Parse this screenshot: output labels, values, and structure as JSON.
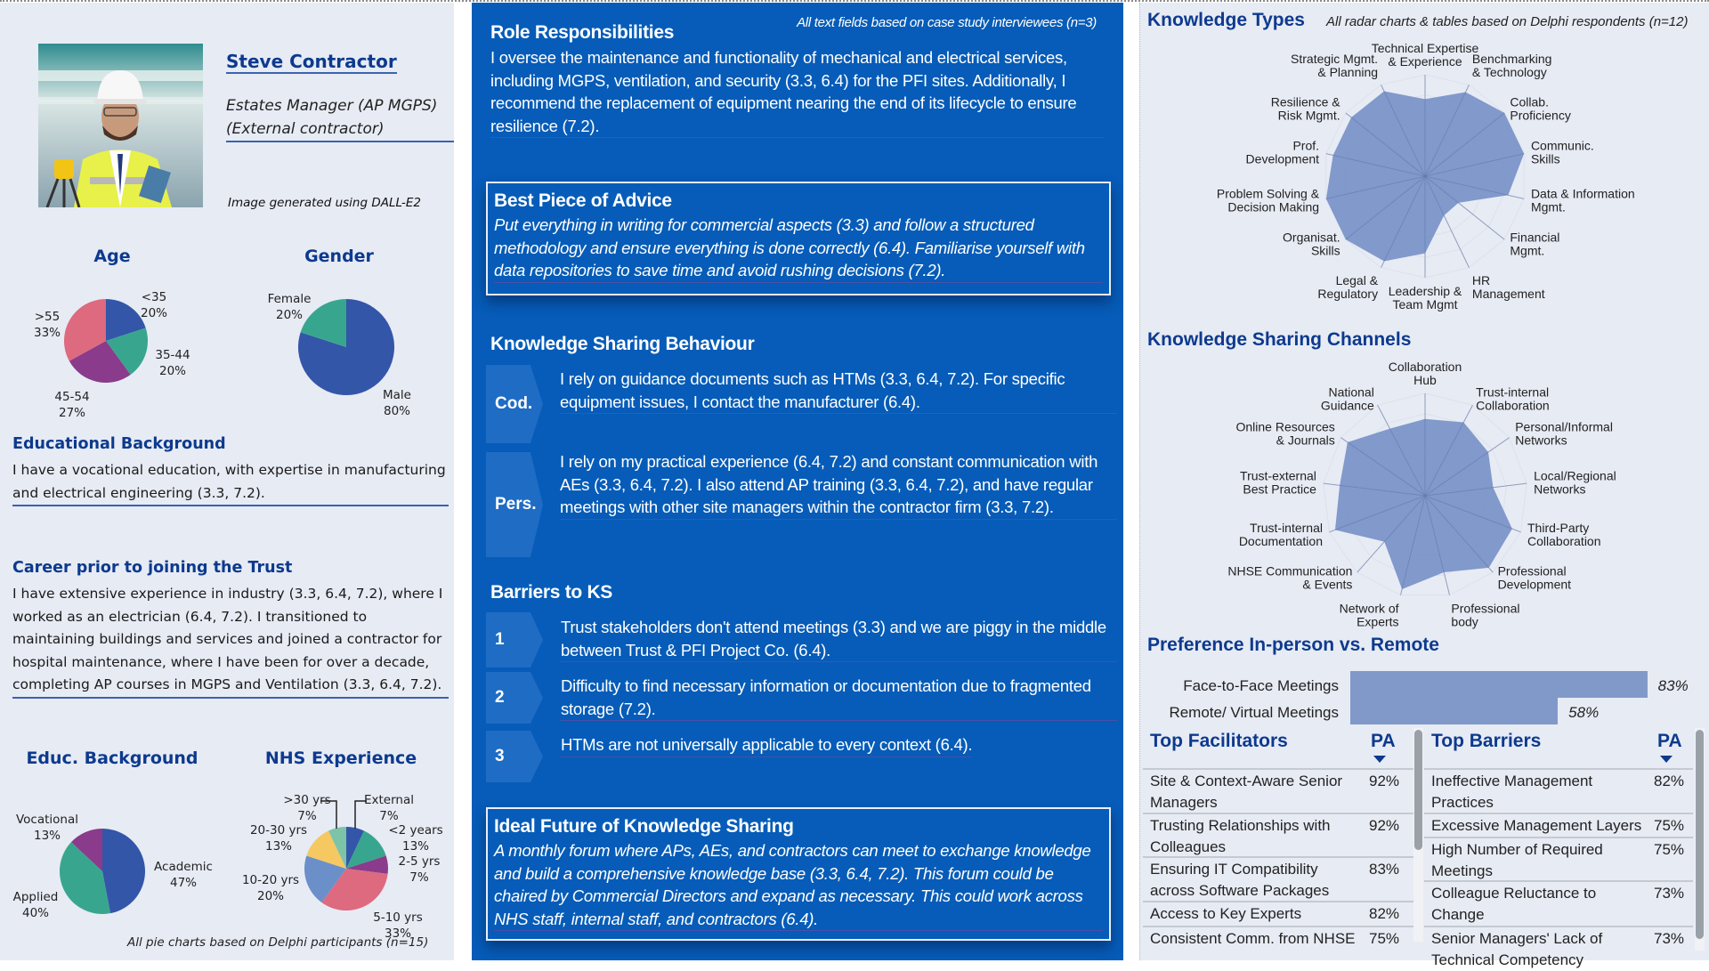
{
  "profile": {
    "name": "Steve Contractor",
    "role_line1": "Estates Manager (AP MGPS)",
    "role_line2": "(External contractor)",
    "image_caption": "Image generated using DALL-E2"
  },
  "left": {
    "edu_heading": "Educational Background",
    "edu_text": "I have a vocational education, with expertise in manufacturing and electrical engineering (3.3, 7.2).",
    "career_heading": "Career prior to joining the Trust",
    "career_text": "I have extensive experience in industry (3.3, 6.4, 7.2), where I worked as an electrician (6.4, 7.2). I transitioned to maintaining buildings and services and joined a contractor for hospital maintenance, where I have been for over a decade, completing AP courses in MGPS and Ventilation (3.3, 6.4, 7.2).",
    "pie_footnote": "All pie charts based on Delphi participants (n=15)"
  },
  "colors": {
    "blue": "#3356a8",
    "teal": "#38a68e",
    "purple": "#8a3b8b",
    "pink": "#de6a7f",
    "lightblue": "#6b8fc9",
    "yellow": "#f5c862",
    "mint": "#7dc3a7",
    "radar_fill": "#7590c6",
    "panel_blue": "#065cb8",
    "heading_navy": "#0d3a8e"
  },
  "chart_data": [
    {
      "type": "pie",
      "title": "Age",
      "slices": [
        {
          "label": "<35",
          "value": 20,
          "color": "#3356a8"
        },
        {
          "label": "35-44",
          "value": 20,
          "color": "#38a68e"
        },
        {
          "label": "45-54",
          "value": 27,
          "color": "#8a3b8b"
        },
        {
          "label": ">55",
          "value": 33,
          "color": "#de6a7f"
        }
      ]
    },
    {
      "type": "pie",
      "title": "Gender",
      "slices": [
        {
          "label": "Male",
          "value": 80,
          "color": "#3356a8"
        },
        {
          "label": "Female",
          "value": 20,
          "color": "#38a68e"
        }
      ]
    },
    {
      "type": "pie",
      "title": "Educ. Background",
      "slices": [
        {
          "label": "Academic",
          "value": 47,
          "color": "#3356a8"
        },
        {
          "label": "Applied",
          "value": 40,
          "color": "#38a68e"
        },
        {
          "label": "Vocational",
          "value": 13,
          "color": "#8a3b8b"
        }
      ]
    },
    {
      "type": "pie",
      "title": "NHS Experience",
      "slices": [
        {
          "label": "External",
          "value": 7,
          "color": "#3356a8"
        },
        {
          "label": "<2 years",
          "value": 13,
          "color": "#38a68e"
        },
        {
          "label": "2-5 yrs",
          "value": 7,
          "color": "#8a3b8b"
        },
        {
          "label": "5-10 yrs",
          "value": 33,
          "color": "#de6a7f"
        },
        {
          "label": "10-20 yrs",
          "value": 20,
          "color": "#6b8fc9"
        },
        {
          "label": "20-30 yrs",
          "value": 13,
          "color": "#f5c862"
        },
        {
          "label": ">30 yrs",
          "value": 7,
          "color": "#7dc3a7"
        }
      ]
    },
    {
      "type": "radar",
      "title": "Knowledge Types",
      "range": [
        0,
        1
      ],
      "grid": true,
      "axes": [
        {
          "label": [
            "Technical Expertise",
            "& Experience"
          ],
          "value": 0.76
        },
        {
          "label": [
            "Benchmarking",
            "& Technology"
          ],
          "value": 0.92
        },
        {
          "label": [
            "Collab.",
            "Proficiency"
          ],
          "value": 1.0
        },
        {
          "label": [
            "Communic.",
            "Skills"
          ],
          "value": 1.0
        },
        {
          "label": [
            "Data & Information",
            "Mgmt."
          ],
          "value": 0.84
        },
        {
          "label": [
            "Financial",
            "Mgmt."
          ],
          "value": 0.42
        },
        {
          "label": [
            "HR",
            "Management"
          ],
          "value": 0.43
        },
        {
          "label": [
            "Leadership &",
            "Team Mgmt"
          ],
          "value": 0.76
        },
        {
          "label": [
            "Legal &",
            "Regulatory"
          ],
          "value": 0.93
        },
        {
          "label": [
            "Organisat.",
            "Skills"
          ],
          "value": 1.0
        },
        {
          "label": [
            "Problem Solving &",
            "Decision Making"
          ],
          "value": 1.0
        },
        {
          "label": [
            "Prof.",
            "Development"
          ],
          "value": 0.93
        },
        {
          "label": [
            "Resilience &",
            "Risk Mgmt."
          ],
          "value": 0.93
        },
        {
          "label": [
            "Strategic Mgmt.",
            "& Planning"
          ],
          "value": 0.93
        }
      ]
    },
    {
      "type": "radar",
      "title": "Knowledge Sharing Channels",
      "range": [
        0,
        1
      ],
      "grid": true,
      "axes": [
        {
          "label": [
            "Collaboration",
            "Hub"
          ],
          "value": 0.75
        },
        {
          "label": [
            "Trust-internal",
            "Collaboration"
          ],
          "value": 0.81
        },
        {
          "label": [
            "Personal/Informal",
            "Networks"
          ],
          "value": 0.75
        },
        {
          "label": [
            "Local/Regional",
            "Networks"
          ],
          "value": 0.67
        },
        {
          "label": [
            "Third-Party",
            "Collaboration"
          ],
          "value": 0.91
        },
        {
          "label": [
            "Professional",
            "Development"
          ],
          "value": 0.94
        },
        {
          "label": [
            "Professional",
            "body"
          ],
          "value": 0.77
        },
        {
          "label": [
            "Network of",
            "Experts"
          ],
          "value": 0.94
        },
        {
          "label": [
            "NHSE Communication",
            "& Events"
          ],
          "value": 0.6
        },
        {
          "label": [
            "Trust-internal",
            "Documentation"
          ],
          "value": 0.94
        },
        {
          "label": [
            "Trust-external",
            "Best Practice"
          ],
          "value": 0.84
        },
        {
          "label": [
            "Online Resources",
            "& Journals"
          ],
          "value": 0.92
        },
        {
          "label": [
            "National",
            "Guidance"
          ],
          "value": 0.74
        }
      ]
    },
    {
      "type": "bar",
      "orientation": "horizontal",
      "title": "Preference In-person vs. Remote",
      "categories": [
        "Face-to-Face Meetings",
        "Remote/ Virtual Meetings"
      ],
      "values": [
        83,
        58
      ],
      "value_labels": [
        "83%",
        "58%"
      ],
      "xlim": [
        0,
        100
      ]
    }
  ],
  "mid": {
    "note": "All text fields based on case study interviewees (n=3)",
    "role_heading": "Role Responsibilities",
    "role_text": "I oversee the maintenance and functionality of mechanical and electrical services, including MGPS, ventilation, and security (3.3, 6.4) for the PFI sites. Additionally, I recommend the replacement of equipment nearing the end of its lifecycle to ensure resilience (7.2).",
    "advice_heading": "Best Piece of Advice",
    "advice_text": "Put everything in writing for commercial aspects (3.3) and follow a structured methodology and ensure everything is done correctly (6.4). Familiarise yourself with data repositories to save time and avoid rushing decisions (7.2).",
    "ksb_heading": "Knowledge Sharing Behaviour",
    "ksb": [
      {
        "tag": "Cod.",
        "text": "I rely on guidance documents such as HTMs (3.3, 6.4, 7.2). For specific equipment issues, I contact the manufacturer (6.4)."
      },
      {
        "tag": "Pers.",
        "text": "I rely on my practical experience (6.4, 7.2) and constant communication with AEs (3.3, 6.4, 7.2). I also attend AP training (3.3, 6.4, 7.2), and have regular meetings with other site managers within the contractor firm (3.3, 7.2)."
      }
    ],
    "barriers_heading": "Barriers to KS",
    "barriers": [
      {
        "num": "1",
        "text": "Trust stakeholders don't attend meetings (3.3) and we are piggy in the middle between Trust & PFI Project Co. (6.4)."
      },
      {
        "num": "2",
        "text": "Difficulty to find necessary information or documentation due to fragmented storage (7.2)."
      },
      {
        "num": "3",
        "text": "HTMs are not universally applicable to every context (6.4)."
      }
    ],
    "future_heading": "Ideal Future of Knowledge Sharing",
    "future_text": "A monthly forum where APs, AEs, and contractors can meet to exchange knowledge and build a comprehensive knowledge base (3.3, 6.4, 7.2). This forum could be chaired by Commercial Directors and expand as necessary. This could work across NHS staff, internal staff, and contractors (6.4)."
  },
  "right": {
    "kt_heading": "Knowledge Types",
    "note": "All radar charts & tables based on Delphi respondents (n=12)",
    "ksc_heading": "Knowledge Sharing Channels",
    "pref_heading": "Preference In-person vs. Remote",
    "facilitators": {
      "heading": "Top Facilitators",
      "col": "PA",
      "sort": "descending",
      "rows": [
        {
          "name": "Site & Context-Aware Senior Managers",
          "pa": "92%"
        },
        {
          "name": "Trusting Relationships with Colleagues",
          "pa": "92%"
        },
        {
          "name": "Ensuring IT Compatibility across Software Packages",
          "pa": "83%"
        },
        {
          "name": "Access to Key Experts",
          "pa": "82%"
        },
        {
          "name": "Consistent Comm. from NHSE",
          "pa": "75%"
        }
      ]
    },
    "barriers": {
      "heading": "Top Barriers",
      "col": "PA",
      "sort": "descending",
      "rows": [
        {
          "name": "Ineffective Management Practices",
          "pa": "82%"
        },
        {
          "name": "Excessive Management Layers",
          "pa": "75%"
        },
        {
          "name": "High Number of Required Meetings",
          "pa": "75%"
        },
        {
          "name": "Colleague Reluctance to Change",
          "pa": "73%"
        },
        {
          "name": "Senior Managers' Lack of Technical Competency",
          "pa": "73%"
        }
      ]
    }
  }
}
